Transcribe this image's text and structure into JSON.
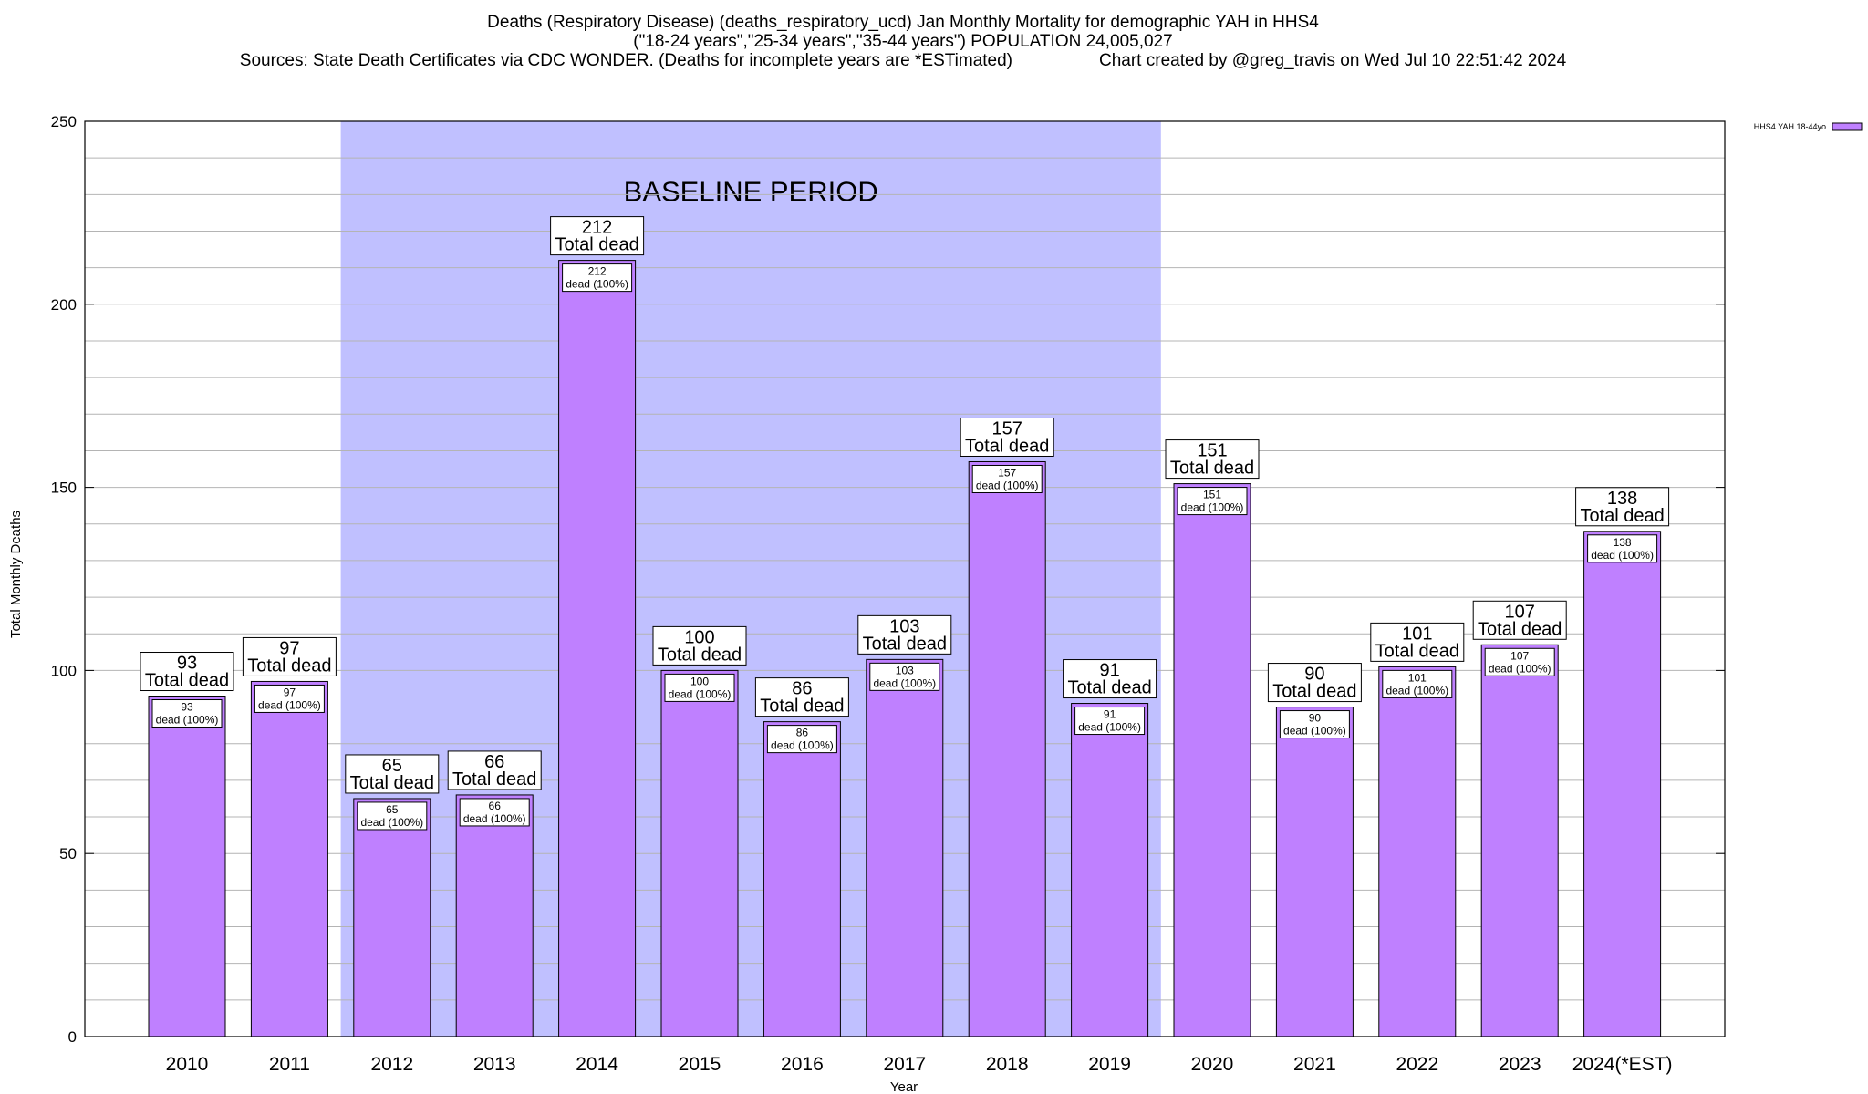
{
  "header": {
    "line1": "Deaths (Respiratory Disease) (deaths_respiratory_ucd) Jan Monthly Mortality for demographic YAH in HHS4",
    "line2": "(\"18-24 years\",\"25-34 years\",\"35-44 years\") POPULATION 24,005,027",
    "sources": "Sources: State Death Certificates via CDC WONDER. (Deaths for incomplete years are *ESTimated)",
    "credit": "Chart created by @greg_travis on Wed Jul 10 22:51:42 2024"
  },
  "chart_data": {
    "type": "bar",
    "xlabel": "Year",
    "ylabel": "Total Monthly Deaths",
    "ylim": [
      0,
      250
    ],
    "yticks": [
      0,
      50,
      100,
      150,
      200,
      250
    ],
    "grid": true,
    "categories": [
      "2010",
      "2011",
      "2012",
      "2013",
      "2014",
      "2015",
      "2016",
      "2017",
      "2018",
      "2019",
      "2020",
      "2021",
      "2022",
      "2023",
      "2024(*EST)"
    ],
    "series": [
      {
        "name": "HHS4 YAH 18-44yo",
        "color": "#bf80ff",
        "values": [
          93,
          97,
          65,
          66,
          212,
          100,
          86,
          103,
          157,
          91,
          151,
          90,
          101,
          107,
          138
        ]
      }
    ],
    "total_label": "Total dead",
    "inner_label_suffix": "dead (100%)",
    "legend": {
      "position": "top-right",
      "label": "HHS4 YAH 18-44yo"
    },
    "baseline": {
      "label": "BASELINE PERIOD",
      "start": "2012",
      "end": "2019",
      "color": "#c0c0ff"
    }
  }
}
